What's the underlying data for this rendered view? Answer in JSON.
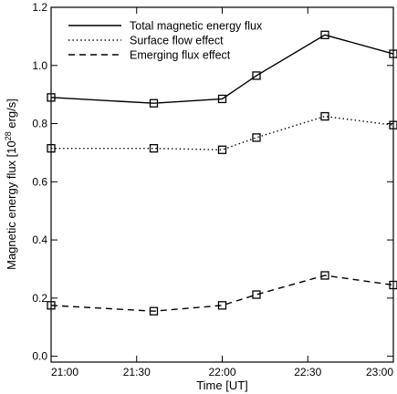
{
  "chart_data": {
    "type": "line",
    "title": "",
    "xlabel": "Time [UT]",
    "ylabel": "Magnetic energy flux [10",
    "ylabel_exponent": "28",
    "ylabel_unit": " erg/s]",
    "xlim": [
      0,
      120
    ],
    "ylim": [
      -0.02,
      1.2
    ],
    "x_ticks": [
      0,
      30,
      60,
      90,
      120
    ],
    "x_tick_labels": [
      "21:00",
      "21:30",
      "22:00",
      "22:30",
      "23:00"
    ],
    "y_ticks": [
      0.0,
      0.2,
      0.4,
      0.6,
      0.8,
      1.0,
      1.2
    ],
    "y_tick_labels": [
      "0.0",
      "0.2",
      "0.4",
      "0.6",
      "0.8",
      "1.0",
      "1.2"
    ],
    "grid": false,
    "legend_position": "top-left",
    "x": [
      0,
      36,
      60,
      72,
      96,
      120
    ],
    "series": [
      {
        "name": "Total magnetic energy flux",
        "style": "solid",
        "values": [
          0.89,
          0.87,
          0.885,
          0.965,
          1.105,
          1.04
        ]
      },
      {
        "name": "Surface flow effect",
        "style": "dotted",
        "values": [
          0.715,
          0.715,
          0.71,
          0.752,
          0.825,
          0.795
        ]
      },
      {
        "name": "Emerging flux effect",
        "style": "dashed",
        "values": [
          0.175,
          0.155,
          0.175,
          0.212,
          0.278,
          0.245
        ]
      }
    ]
  }
}
